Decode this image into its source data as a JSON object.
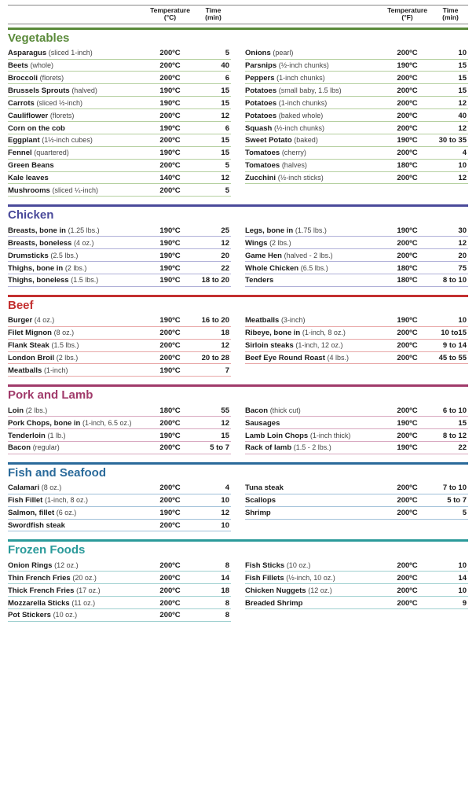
{
  "headers": {
    "temp_c": "Temperature\n(°C)",
    "temp_f": "Temperature\n(°F)",
    "time": "Time\n(min)"
  },
  "sections": [
    {
      "title": "Vegetables",
      "bar_color": "#5a8a3a",
      "title_color": "#5a8a3a",
      "row_border": "#b5d0a0",
      "left": [
        {
          "name": "Asparagus",
          "sub": "(sliced 1-inch)",
          "temp": "200ºC",
          "time": "5"
        },
        {
          "name": "Beets",
          "sub": "(whole)",
          "temp": "200ºC",
          "time": "40"
        },
        {
          "name": "Broccoli",
          "sub": "(florets)",
          "temp": "200ºC",
          "time": "6"
        },
        {
          "name": "Brussels Sprouts",
          "sub": "(halved)",
          "temp": "190ºC",
          "time": "15"
        },
        {
          "name": "Carrots",
          "sub": "(sliced ½-inch)",
          "temp": "190ºC",
          "time": "15"
        },
        {
          "name": "Cauliflower",
          "sub": "(florets)",
          "temp": "200ºC",
          "time": "12"
        },
        {
          "name": "Corn on the cob",
          "sub": "",
          "temp": "190ºC",
          "time": "6"
        },
        {
          "name": "Eggplant",
          "sub": "(1½-inch cubes)",
          "temp": "200ºC",
          "time": "15"
        },
        {
          "name": "Fennel",
          "sub": "(quartered)",
          "temp": "190ºC",
          "time": "15"
        },
        {
          "name": "Green Beans",
          "sub": "",
          "temp": "200ºC",
          "time": "5"
        },
        {
          "name": "Kale leaves",
          "sub": "",
          "temp": "140ºC",
          "time": "12"
        },
        {
          "name": "Mushrooms",
          "sub": "(sliced ¼-inch)",
          "temp": "200ºC",
          "time": "5"
        }
      ],
      "right": [
        {
          "name": "Onions",
          "sub": "(pearl)",
          "temp": "200ºC",
          "time": "10"
        },
        {
          "name": "Parsnips",
          "sub": "(½-inch chunks)",
          "temp": "190ºC",
          "time": "15"
        },
        {
          "name": "Peppers",
          "sub": "(1-inch chunks)",
          "temp": "200ºC",
          "time": "15"
        },
        {
          "name": "Potatoes",
          "sub": "(small baby, 1.5 lbs)",
          "temp": "200ºC",
          "time": "15"
        },
        {
          "name": "Potatoes",
          "sub": "(1-inch chunks)",
          "temp": "200ºC",
          "time": "12"
        },
        {
          "name": "Potatoes",
          "sub": "(baked whole)",
          "temp": "200ºC",
          "time": "40"
        },
        {
          "name": "Squash",
          "sub": "(½-inch chunks)",
          "temp": "200ºC",
          "time": "12"
        },
        {
          "name": "Sweet Potato",
          "sub": "(baked)",
          "temp": "190ºC",
          "time": "30 to 35"
        },
        {
          "name": "Tomatoes",
          "sub": "(cherry)",
          "temp": "200ºC",
          "time": "4"
        },
        {
          "name": "Tomatoes",
          "sub": "(halves)",
          "temp": "180ºC",
          "time": "10"
        },
        {
          "name": "Zucchini",
          "sub": "(½-inch sticks)",
          "temp": "200ºC",
          "time": "12"
        }
      ]
    },
    {
      "title": "Chicken",
      "bar_color": "#4a4a9a",
      "title_color": "#4a4a9a",
      "row_border": "#b0b0d8",
      "left": [
        {
          "name": "Breasts, bone in",
          "sub": "(1.25 lbs.)",
          "temp": "190ºC",
          "time": "25"
        },
        {
          "name": "Breasts, boneless",
          "sub": " (4 oz.)",
          "temp": "190ºC",
          "time": "12"
        },
        {
          "name": "Drumsticks",
          "sub": " (2.5 lbs.)",
          "temp": "190ºC",
          "time": "20"
        },
        {
          "name": "Thighs, bone in",
          "sub": " (2 lbs.)",
          "temp": "190ºC",
          "time": "22"
        },
        {
          "name": "Thighs, boneless",
          "sub": "(1.5 lbs.)",
          "temp": "190ºC",
          "time": "18 to 20"
        }
      ],
      "right": [
        {
          "name": "Legs, bone in",
          "sub": " (1.75 lbs.)",
          "temp": "190ºC",
          "time": "30"
        },
        {
          "name": "Wings",
          "sub": " (2 lbs.)",
          "temp": "200ºC",
          "time": "12"
        },
        {
          "name": "Game Hen",
          "sub": "(halved - 2 lbs.)",
          "temp": "200ºC",
          "time": "20"
        },
        {
          "name": "Whole Chicken",
          "sub": "(6.5 lbs.)",
          "temp": "180ºC",
          "time": "75"
        },
        {
          "name": "Tenders",
          "sub": "",
          "temp": "180ºC",
          "time": "8 to 10"
        }
      ]
    },
    {
      "title": "Beef",
      "bar_color": "#c33030",
      "title_color": "#c33030",
      "row_border": "#e8a8a8",
      "left": [
        {
          "name": "Burger",
          "sub": " (4 oz.)",
          "temp": "190ºC",
          "time": "16 to 20"
        },
        {
          "name": "Filet Mignon",
          "sub": "(8 oz.)",
          "temp": "200ºC",
          "time": "18"
        },
        {
          "name": "Flank Steak",
          "sub": " (1.5 lbs.)",
          "temp": "200ºC",
          "time": "12"
        },
        {
          "name": "London Broil",
          "sub": " (2 lbs.)",
          "temp": "200ºC",
          "time": "20 to 28"
        },
        {
          "name": "Meatballs",
          "sub": "(1-inch)",
          "temp": "190ºC",
          "time": "7"
        }
      ],
      "right": [
        {
          "name": "Meatballs",
          "sub": "(3-inch)",
          "temp": "190ºC",
          "time": "10"
        },
        {
          "name": "Ribeye, bone in",
          "sub": "(1-inch, 8 oz.)",
          "temp": "200ºC",
          "time": "10 to15"
        },
        {
          "name": "Sirloin steaks",
          "sub": "(1-inch, 12 oz.)",
          "temp": "200ºC",
          "time": "9 to 14"
        },
        {
          "name": "Beef Eye Round Roast",
          "sub": "(4 lbs.)",
          "temp": "200ºC",
          "time": "45 to 55"
        }
      ]
    },
    {
      "title": "Pork and Lamb",
      "bar_color": "#a03a6a",
      "title_color": "#a03a6a",
      "row_border": "#d8a8c0",
      "left": [
        {
          "name": "Loin",
          "sub": "(2 lbs.)",
          "temp": "180ºC",
          "time": "55"
        },
        {
          "name": "Pork Chops, bone in",
          "sub": "(1-inch, 6.5 oz.)",
          "temp": "200ºC",
          "time": "12"
        },
        {
          "name": "Tenderloin",
          "sub": "(1 lb.)",
          "temp": "190ºC",
          "time": "15"
        },
        {
          "name": "Bacon",
          "sub": "(regular)",
          "temp": "200ºC",
          "time": "5 to 7"
        }
      ],
      "right": [
        {
          "name": "Bacon",
          "sub": "(thick cut)",
          "temp": "200ºC",
          "time": "6 to 10"
        },
        {
          "name": "Sausages",
          "sub": "",
          "temp": "190ºC",
          "time": "15"
        },
        {
          "name": "Lamb Loin Chops",
          "sub": "(1-inch thick)",
          "temp": "200ºC",
          "time": "8 to 12"
        },
        {
          "name": "Rack of lamb",
          "sub": "(1.5 - 2 lbs.)",
          "temp": "190ºC",
          "time": "22"
        }
      ]
    },
    {
      "title": "Fish and Seafood",
      "bar_color": "#2a6a9a",
      "title_color": "#2a6a9a",
      "row_border": "#a0c0d8",
      "left": [
        {
          "name": "Calamari",
          "sub": "(8 oz.)",
          "temp": "200ºC",
          "time": "4"
        },
        {
          "name": "Fish Fillet",
          "sub": "(1-inch, 8 oz.)",
          "temp": "200ºC",
          "time": "10"
        },
        {
          "name": "Salmon, fillet",
          "sub": " (6 oz.)",
          "temp": "190ºC",
          "time": "12"
        },
        {
          "name": "Swordfish steak",
          "sub": "",
          "temp": "200ºC",
          "time": "10"
        }
      ],
      "right": [
        {
          "name": "Tuna steak",
          "sub": "",
          "temp": "200ºC",
          "time": "7 to 10"
        },
        {
          "name": "Scallops",
          "sub": "",
          "temp": "200ºC",
          "time": "5 to 7"
        },
        {
          "name": "Shrimp",
          "sub": "",
          "temp": "200ºC",
          "time": "5"
        }
      ]
    },
    {
      "title": "Frozen Foods",
      "bar_color": "#2a9a9a",
      "title_color": "#2a9a9a",
      "row_border": "#a0d0d0",
      "left": [
        {
          "name": "Onion Rings",
          "sub": " (12 oz.)",
          "temp": "200ºC",
          "time": "8"
        },
        {
          "name": "Thin French Fries",
          "sub": " (20 oz.)",
          "temp": "200ºC",
          "time": "14"
        },
        {
          "name": "Thick French Fries",
          "sub": "(17 oz.)",
          "temp": "200ºC",
          "time": "18"
        },
        {
          "name": "Mozzarella Sticks",
          "sub": "(11 oz.)",
          "temp": "200ºC",
          "time": "8"
        },
        {
          "name": "Pot Stickers",
          "sub": "(10 oz.)",
          "temp": "200ºC",
          "time": "8"
        }
      ],
      "right": [
        {
          "name": "Fish Sticks",
          "sub": "(10 oz.)",
          "temp": "200ºC",
          "time": "10"
        },
        {
          "name": "Fish Fillets",
          "sub": "(½-inch, 10 oz.)",
          "temp": "200ºC",
          "time": "14"
        },
        {
          "name": "Chicken Nuggets",
          "sub": "(12 oz.)",
          "temp": "200ºC",
          "time": "10"
        },
        {
          "name": "Breaded Shrimp",
          "sub": "",
          "temp": "200ºC",
          "time": "9"
        }
      ]
    }
  ]
}
